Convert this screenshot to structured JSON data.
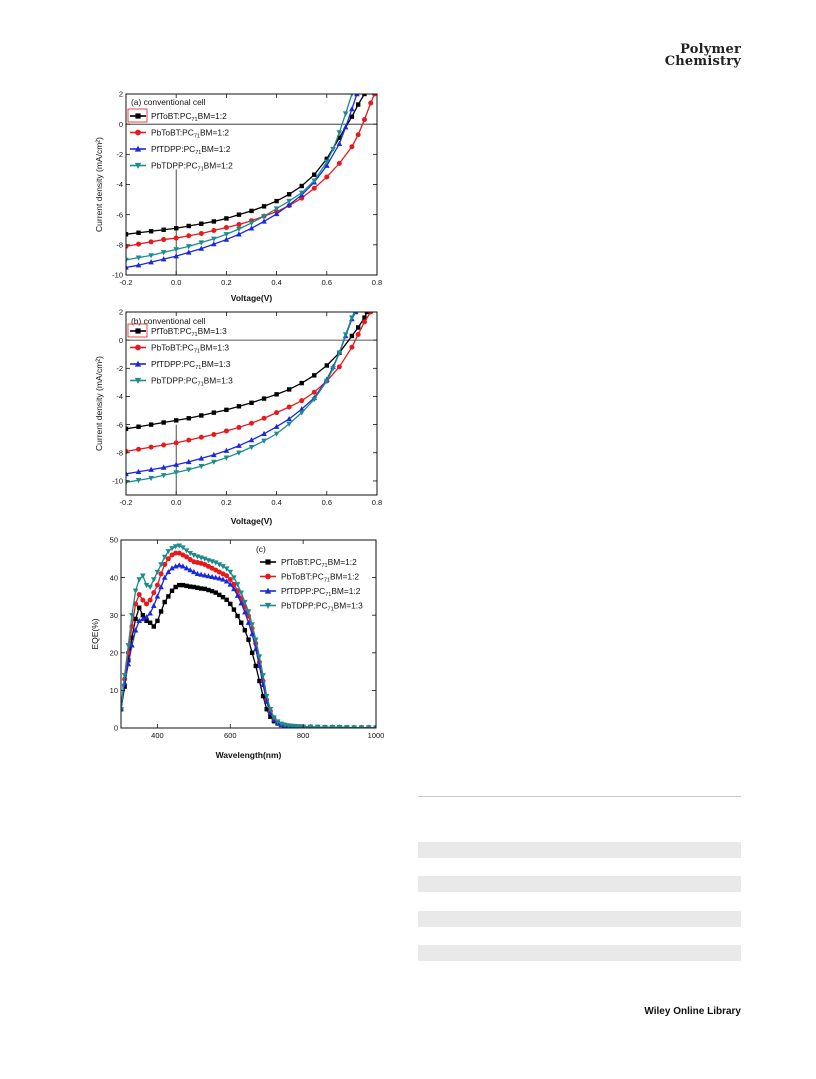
{
  "journal": {
    "line1": "Polymer",
    "line2": "Chemistry"
  },
  "footer": {
    "text": "Wiley Online Library"
  },
  "chart_data": [
    {
      "type": "line",
      "panel_label": "(a) conventional cell",
      "xlabel": "Voltage(V)",
      "ylabel": "Current density (mA/cm²)",
      "xlim": [
        -0.2,
        0.8
      ],
      "ylim": [
        -10,
        2
      ],
      "xticks": [
        "-0.2",
        "0.0",
        "0.2",
        "0.4",
        "0.6",
        "0.8"
      ],
      "yticks": [
        "2",
        "0",
        "-2",
        "-4",
        "-6",
        "-8",
        "-10"
      ],
      "legend": "top-left",
      "series": [
        {
          "name": "PfToBT:PC71BM=1:2",
          "color": "#000000",
          "marker": "square",
          "x": [
            -0.2,
            -0.15,
            -0.1,
            -0.05,
            0,
            0.05,
            0.1,
            0.15,
            0.2,
            0.25,
            0.3,
            0.35,
            0.4,
            0.45,
            0.5,
            0.55,
            0.6,
            0.65,
            0.7,
            0.725,
            0.75,
            0.76
          ],
          "y": [
            -7.3,
            -7.2,
            -7.1,
            -7.0,
            -6.9,
            -6.75,
            -6.6,
            -6.45,
            -6.25,
            -6.0,
            -5.75,
            -5.45,
            -5.1,
            -4.65,
            -4.1,
            -3.35,
            -2.3,
            -0.9,
            0.5,
            1.3,
            2.0,
            2.3
          ]
        },
        {
          "name": "PbToBT:PC71BM=1:2",
          "color": "#e8191c",
          "marker": "circle",
          "x": [
            -0.2,
            -0.15,
            -0.1,
            -0.05,
            0,
            0.05,
            0.1,
            0.15,
            0.2,
            0.25,
            0.3,
            0.35,
            0.4,
            0.45,
            0.5,
            0.55,
            0.6,
            0.65,
            0.7,
            0.725,
            0.75,
            0.775,
            0.79
          ],
          "y": [
            -8.1,
            -7.95,
            -7.8,
            -7.65,
            -7.55,
            -7.4,
            -7.25,
            -7.05,
            -6.85,
            -6.65,
            -6.4,
            -6.1,
            -5.8,
            -5.4,
            -4.9,
            -4.25,
            -3.5,
            -2.6,
            -1.5,
            -0.7,
            0.3,
            1.4,
            2.0
          ]
        },
        {
          "name": "PfTDPP:PC71BM=1:2",
          "color": "#1a28e0",
          "marker": "triangle-up",
          "x": [
            -0.2,
            -0.15,
            -0.1,
            -0.05,
            0,
            0.05,
            0.1,
            0.15,
            0.2,
            0.25,
            0.3,
            0.35,
            0.4,
            0.45,
            0.5,
            0.55,
            0.6,
            0.65,
            0.675,
            0.7,
            0.72
          ],
          "y": [
            -9.5,
            -9.35,
            -9.15,
            -8.95,
            -8.75,
            -8.5,
            -8.25,
            -7.95,
            -7.65,
            -7.3,
            -6.9,
            -6.45,
            -5.95,
            -5.35,
            -4.7,
            -3.85,
            -2.75,
            -1.3,
            -0.2,
            1.0,
            2.0
          ]
        },
        {
          "name": "PbTDPP:PC71BM=1:2",
          "color": "#1c8c8c",
          "marker": "triangle-down",
          "x": [
            -0.2,
            -0.15,
            -0.1,
            -0.05,
            0,
            0.05,
            0.1,
            0.15,
            0.2,
            0.25,
            0.3,
            0.35,
            0.4,
            0.45,
            0.5,
            0.55,
            0.6,
            0.625,
            0.65,
            0.675,
            0.7
          ],
          "y": [
            -9.0,
            -8.85,
            -8.7,
            -8.5,
            -8.3,
            -8.1,
            -7.85,
            -7.6,
            -7.3,
            -6.95,
            -6.55,
            -6.1,
            -5.6,
            -5.1,
            -4.55,
            -3.75,
            -2.5,
            -1.65,
            -0.55,
            0.7,
            2.0
          ]
        }
      ]
    },
    {
      "type": "line",
      "panel_label": "(b) conventional cell",
      "xlabel": "Voltage(V)",
      "ylabel": "Current density (mA/cm²)",
      "xlim": [
        -0.2,
        0.8
      ],
      "ylim": [
        -11,
        2
      ],
      "xticks": [
        "-0.2",
        "0.0",
        "0.2",
        "0.4",
        "0.6",
        "0.8"
      ],
      "yticks": [
        "2",
        "0",
        "-2",
        "-4",
        "-6",
        "-8",
        "-10"
      ],
      "legend": "top-left",
      "series": [
        {
          "name": "PfToBT:PC71BM=1:3",
          "color": "#000000",
          "marker": "square",
          "x": [
            -0.2,
            -0.15,
            -0.1,
            -0.05,
            0,
            0.05,
            0.1,
            0.15,
            0.2,
            0.25,
            0.3,
            0.35,
            0.4,
            0.45,
            0.5,
            0.55,
            0.6,
            0.65,
            0.7,
            0.725,
            0.75,
            0.76
          ],
          "y": [
            -6.3,
            -6.15,
            -6.0,
            -5.85,
            -5.7,
            -5.55,
            -5.35,
            -5.15,
            -4.95,
            -4.7,
            -4.45,
            -4.15,
            -3.85,
            -3.5,
            -3.05,
            -2.5,
            -1.8,
            -0.9,
            0.3,
            0.9,
            1.6,
            2.0
          ]
        },
        {
          "name": "PbToBT:PC71BM=1:3",
          "color": "#e8191c",
          "marker": "circle",
          "x": [
            -0.2,
            -0.15,
            -0.1,
            -0.05,
            0,
            0.05,
            0.1,
            0.15,
            0.2,
            0.25,
            0.3,
            0.35,
            0.4,
            0.45,
            0.5,
            0.55,
            0.6,
            0.65,
            0.7,
            0.725,
            0.75,
            0.775
          ],
          "y": [
            -7.9,
            -7.75,
            -7.6,
            -7.45,
            -7.3,
            -7.1,
            -6.9,
            -6.7,
            -6.45,
            -6.2,
            -5.9,
            -5.55,
            -5.15,
            -4.75,
            -4.3,
            -3.7,
            -2.9,
            -1.9,
            -0.5,
            0.4,
            1.3,
            2.0
          ]
        },
        {
          "name": "PfTDPP:PC71BM=1:3",
          "color": "#1a28e0",
          "marker": "triangle-up",
          "x": [
            -0.2,
            -0.15,
            -0.1,
            -0.05,
            0,
            0.05,
            0.1,
            0.15,
            0.2,
            0.25,
            0.3,
            0.35,
            0.4,
            0.45,
            0.5,
            0.55,
            0.6,
            0.625,
            0.65,
            0.675,
            0.7,
            0.715
          ],
          "y": [
            -9.5,
            -9.35,
            -9.2,
            -9.05,
            -8.85,
            -8.65,
            -8.4,
            -8.15,
            -7.85,
            -7.5,
            -7.1,
            -6.65,
            -6.15,
            -5.6,
            -4.9,
            -4.1,
            -2.8,
            -1.9,
            -0.9,
            0.3,
            1.5,
            2.0
          ]
        },
        {
          "name": "PbTDPP:PC71BM=1:3",
          "color": "#1c8c8c",
          "marker": "triangle-down",
          "x": [
            -0.2,
            -0.15,
            -0.1,
            -0.05,
            0,
            0.05,
            0.1,
            0.15,
            0.2,
            0.25,
            0.3,
            0.35,
            0.4,
            0.45,
            0.5,
            0.55,
            0.6,
            0.625,
            0.65,
            0.675,
            0.7,
            0.71
          ],
          "y": [
            -10.1,
            -9.95,
            -9.8,
            -9.6,
            -9.4,
            -9.2,
            -8.95,
            -8.65,
            -8.35,
            -8.0,
            -7.6,
            -7.15,
            -6.65,
            -5.95,
            -5.15,
            -4.2,
            -2.9,
            -2.0,
            -0.9,
            0.4,
            1.6,
            2.0
          ]
        }
      ]
    },
    {
      "type": "line",
      "panel_label": "(c)",
      "xlabel": "Wavelength(nm)",
      "ylabel": "EQE(%)",
      "xlim": [
        300,
        1000
      ],
      "ylim": [
        0,
        50
      ],
      "xticks": [
        "400",
        "600",
        "800",
        "1000"
      ],
      "yticks": [
        "50",
        "40",
        "30",
        "20",
        "10",
        "0"
      ],
      "legend": "top-right",
      "series": [
        {
          "name": "PfToBT:PC71BM=1:2",
          "color": "#000000",
          "marker": "square",
          "x": [
            300,
            310,
            320,
            330,
            340,
            350,
            360,
            370,
            380,
            390,
            400,
            410,
            420,
            430,
            440,
            450,
            460,
            470,
            480,
            490,
            500,
            510,
            520,
            530,
            540,
            550,
            560,
            570,
            580,
            590,
            600,
            610,
            620,
            630,
            640,
            650,
            660,
            670,
            680,
            690,
            700,
            710,
            720,
            730,
            740,
            750,
            760,
            770,
            780,
            790,
            800,
            820,
            840,
            860,
            880,
            900,
            920,
            940,
            960,
            980,
            1000
          ],
          "y": [
            5,
            11,
            18,
            24,
            29,
            32,
            30,
            28.5,
            28,
            27,
            28.5,
            31,
            33.5,
            35,
            36.5,
            37.5,
            38,
            38,
            37.8,
            37.6,
            37.5,
            37.3,
            37.1,
            37,
            36.7,
            36.4,
            36,
            35.4,
            34.8,
            34.1,
            33,
            31.5,
            29.8,
            28,
            26,
            23.5,
            20,
            16.5,
            12.5,
            8.5,
            5,
            3,
            1.8,
            1.2,
            0.8,
            0.6,
            0.5,
            0.4,
            0.3,
            0.3,
            0.3,
            0.2,
            0.2,
            0.2,
            0.2,
            0.2,
            0.1,
            0.1,
            0.1,
            0.1,
            0.1
          ]
        },
        {
          "name": "PbToBT:PC71BM=1:2",
          "color": "#e8191c",
          "marker": "circle",
          "x": [
            300,
            310,
            320,
            330,
            340,
            350,
            360,
            370,
            380,
            390,
            400,
            410,
            420,
            430,
            440,
            450,
            460,
            470,
            480,
            490,
            500,
            510,
            520,
            530,
            540,
            550,
            560,
            570,
            580,
            590,
            600,
            610,
            620,
            630,
            640,
            650,
            660,
            670,
            680,
            690,
            700,
            710,
            720,
            730,
            740,
            750,
            760,
            770,
            780,
            790,
            800,
            820,
            840,
            860,
            880,
            900,
            920,
            940,
            960,
            980,
            1000
          ],
          "y": [
            5,
            13,
            20,
            27,
            33,
            35.5,
            34,
            33,
            34,
            36,
            38,
            41,
            43.5,
            45,
            46,
            46.5,
            46.5,
            46,
            45.5,
            44.8,
            44.2,
            44,
            43.8,
            43.5,
            43,
            42.5,
            42,
            41.5,
            41,
            40.5,
            39.5,
            38.2,
            36.5,
            34.5,
            32.2,
            29.8,
            26.5,
            22.5,
            17.5,
            12.5,
            7.5,
            4.5,
            2.5,
            1.5,
            1,
            0.8,
            0.6,
            0.5,
            0.4,
            0.3,
            0.3,
            0.3,
            0.2,
            0.2,
            0.2,
            0.2,
            0.1,
            0.1,
            0.1,
            0.1,
            0.1
          ]
        },
        {
          "name": "PfTDPP:PC71BM=1:2",
          "color": "#1a28e0",
          "marker": "triangle-up",
          "x": [
            300,
            310,
            320,
            330,
            340,
            350,
            360,
            370,
            380,
            390,
            400,
            410,
            420,
            430,
            440,
            450,
            460,
            470,
            480,
            490,
            500,
            510,
            520,
            530,
            540,
            550,
            560,
            570,
            580,
            590,
            600,
            610,
            620,
            630,
            640,
            650,
            660,
            670,
            680,
            690,
            700,
            710,
            720,
            730,
            740,
            750,
            760,
            770,
            780,
            790,
            800,
            820,
            840,
            860,
            880,
            900,
            920,
            940,
            960,
            980,
            1000
          ],
          "y": [
            5,
            12,
            17,
            22,
            26,
            28.5,
            29,
            29.5,
            30.5,
            32.5,
            35,
            37.5,
            40,
            41.5,
            42.5,
            43,
            43.3,
            43,
            42.5,
            42,
            41.5,
            41,
            40.8,
            40.6,
            40.4,
            40.2,
            40,
            39.8,
            39.5,
            39,
            38.2,
            37,
            35.2,
            33.2,
            30.8,
            28,
            25,
            21,
            16.5,
            11.5,
            7,
            4,
            2.2,
            1.3,
            0.9,
            0.7,
            0.5,
            0.4,
            0.4,
            0.3,
            0.3,
            0.3,
            0.2,
            0.2,
            0.2,
            0.2,
            0.1,
            0.1,
            0.1,
            0.1,
            0.1
          ]
        },
        {
          "name": "PbTDPP:PC71BM=1:3",
          "color": "#1c8c8c",
          "marker": "triangle-down",
          "x": [
            300,
            310,
            320,
            330,
            340,
            350,
            360,
            370,
            380,
            390,
            400,
            410,
            420,
            430,
            440,
            450,
            460,
            470,
            480,
            490,
            500,
            510,
            520,
            530,
            540,
            550,
            560,
            570,
            580,
            590,
            600,
            610,
            620,
            630,
            640,
            650,
            660,
            670,
            680,
            690,
            700,
            710,
            720,
            730,
            740,
            750,
            760,
            770,
            780,
            790,
            800,
            820,
            840,
            860,
            880,
            900,
            920,
            940,
            960,
            980,
            1000
          ],
          "y": [
            5,
            14,
            22,
            30,
            36.5,
            39.5,
            40.5,
            38,
            37.5,
            39.5,
            41.5,
            43.5,
            45.5,
            47,
            47.8,
            48.3,
            48.5,
            48,
            47.2,
            46.5,
            46,
            45.6,
            45.3,
            45,
            44.6,
            44.3,
            44,
            43.5,
            43,
            42.4,
            41.5,
            40,
            38.2,
            36,
            33.5,
            31,
            27.5,
            23.5,
            19,
            14,
            8.5,
            5,
            2.8,
            1.7,
            1.1,
            0.8,
            0.6,
            0.5,
            0.4,
            0.4,
            0.3,
            0.3,
            0.3,
            0.2,
            0.2,
            0.2,
            0.2,
            0.1,
            0.1,
            0.1,
            0.1
          ]
        }
      ]
    }
  ]
}
